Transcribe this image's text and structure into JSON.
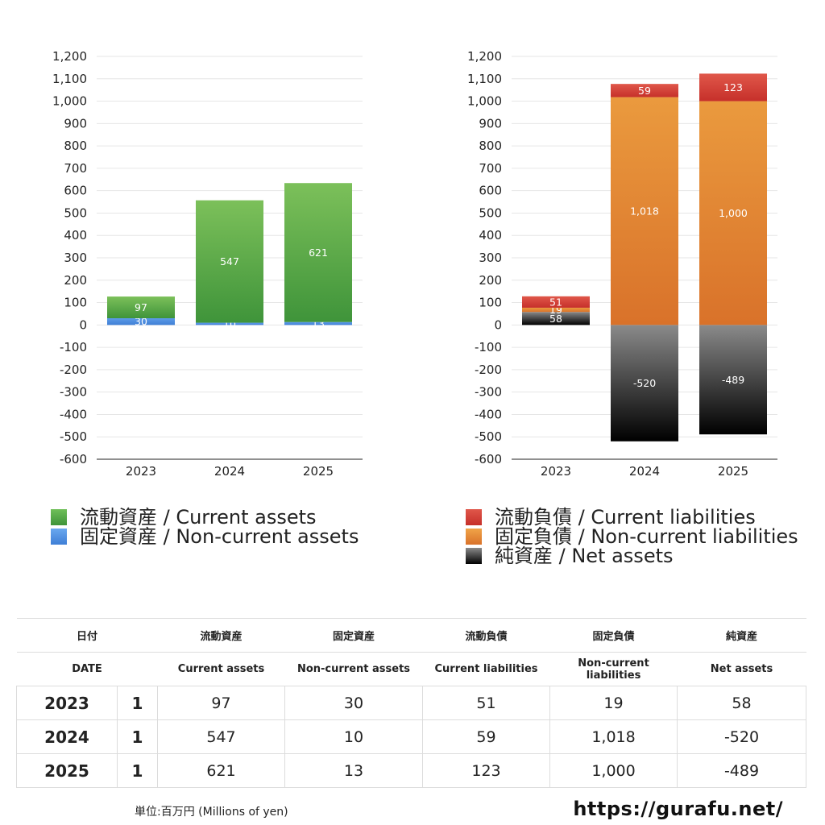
{
  "chart_data": [
    {
      "type": "bar",
      "stacked": true,
      "categories": [
        "2023",
        "2024",
        "2025"
      ],
      "ylim": [
        -600,
        1200
      ],
      "ytick_step": 100,
      "grid": true,
      "series": [
        {
          "name": "固定資産 / Non-current assets",
          "values": [
            30,
            10,
            13
          ],
          "color": "#3f7fd6",
          "color_light": "#5d9be8"
        },
        {
          "name": "流動資産 / Current assets",
          "values": [
            97,
            547,
            621
          ],
          "color": "#3f943a",
          "color_light": "#7cc05a"
        }
      ],
      "legend_placement": "bottom"
    },
    {
      "type": "bar",
      "stacked": true,
      "categories": [
        "2023",
        "2024",
        "2025"
      ],
      "ylim": [
        -600,
        1200
      ],
      "ytick_step": 100,
      "grid": true,
      "series": [
        {
          "name": "純資産 / Net assets",
          "values": [
            58,
            -520,
            -489
          ],
          "color": "#000000",
          "color_light": "#8a8a8a"
        },
        {
          "name": "固定負債 / Non-current liabilities",
          "values": [
            19,
            1018,
            1000
          ],
          "color": "#d9722a",
          "color_light": "#ea9a3e"
        },
        {
          "name": "流動負債 / Current liabilities",
          "values": [
            51,
            59,
            123
          ],
          "color": "#c6302a",
          "color_light": "#e0574a"
        }
      ],
      "legend_placement": "bottom"
    }
  ],
  "legend_assets": [
    {
      "label": "流動資産 / Current assets",
      "color": "#4ea347"
    },
    {
      "label": "固定資産 / Non-current assets",
      "color": "#4a8de0"
    }
  ],
  "legend_liabilities": [
    {
      "label": "流動負債 / Current liabilities",
      "color": "#d6443a"
    },
    {
      "label": "固定負債 / Non-current liabilities",
      "color": "#e58a35"
    },
    {
      "label": "純資産 / Net assets",
      "color": "#2a2a2a"
    }
  ],
  "table": {
    "header_jp": [
      "日付",
      "流動資産",
      "固定資産",
      "流動負債",
      "固定負債",
      "純資産"
    ],
    "header_en": [
      "DATE",
      "Current assets",
      "Non-current assets",
      "Current liabilities",
      "Non-current liabilities",
      "Net assets"
    ],
    "rows": [
      {
        "year": "2023",
        "n": "1",
        "ca": "97",
        "nca": "30",
        "cl": "51",
        "ncl": "19",
        "na": "58"
      },
      {
        "year": "2024",
        "n": "1",
        "ca": "547",
        "nca": "10",
        "cl": "59",
        "ncl": "1,018",
        "na": "-520"
      },
      {
        "year": "2025",
        "n": "1",
        "ca": "621",
        "nca": "13",
        "cl": "123",
        "ncl": "1,000",
        "na": "-489"
      }
    ]
  },
  "unit_note": "単位:百万円 (Millions of yen)",
  "site_url": "https://gurafu.net/"
}
